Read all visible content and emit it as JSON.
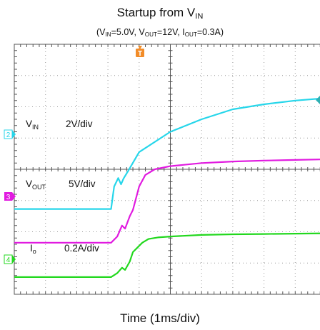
{
  "title": {
    "main": "Startup from V",
    "main_sub": "IN"
  },
  "subtitle": {
    "p1": "(V",
    "s1": "IN",
    "p2": "=5.0V, V",
    "s2": "OUT",
    "p3": "=12V, I",
    "s3": "OUT",
    "p4": "=0.3A)"
  },
  "xlabel": "Time (1ms/div)",
  "trigger": {
    "marker": "T",
    "color": "#f28c28"
  },
  "channels": [
    {
      "num": "2",
      "name": "V",
      "name_sub": "IN",
      "scale": "2V/div",
      "color": "#27d6ea"
    },
    {
      "num": "3",
      "name": "V",
      "name_sub": "OUT",
      "scale": "5V/div",
      "color": "#e11be0"
    },
    {
      "num": "4",
      "name": "I",
      "name_sub": "o",
      "scale": "0.2A/div",
      "color": "#22d81e"
    }
  ],
  "chart_data": {
    "type": "line",
    "title": "Startup from VIN",
    "subtitle": "(VIN=5.0V, VOUT=12V, IOUT=0.3A)",
    "xlabel": "Time (1ms/div)",
    "ylabel": "",
    "grid": true,
    "x_unit": "div",
    "y_unit": "div",
    "xlim": [
      0,
      10
    ],
    "ylim": [
      0,
      8
    ],
    "series": [
      {
        "name": "VIN (2V/div)",
        "color": "#27d6ea",
        "x": [
          0,
          3.1,
          3.2,
          3.33,
          3.42,
          3.5,
          3.65,
          4,
          5,
          6,
          7,
          8,
          9,
          10
        ],
        "y": [
          2.73,
          2.73,
          3.45,
          3.72,
          3.52,
          3.7,
          3.95,
          4.55,
          5.2,
          5.6,
          5.92,
          6.08,
          6.2,
          6.28
        ]
      },
      {
        "name": "VOUT (5V/div)",
        "color": "#e11be0",
        "x": [
          0,
          3.1,
          3.3,
          3.45,
          3.55,
          3.7,
          3.8,
          4,
          4.2,
          4.5,
          5,
          6,
          7,
          8,
          9,
          10
        ],
        "y": [
          1.65,
          1.65,
          1.85,
          2.2,
          2.1,
          2.5,
          2.7,
          3.45,
          3.82,
          4.0,
          4.1,
          4.2,
          4.25,
          4.28,
          4.3,
          4.32
        ]
      },
      {
        "name": "Io (0.2A/div)",
        "color": "#22d81e",
        "x": [
          0,
          3.1,
          3.3,
          3.45,
          3.55,
          3.7,
          3.8,
          4.1,
          4.3,
          4.6,
          5,
          6,
          7,
          8,
          9,
          10
        ],
        "y": [
          0.55,
          0.55,
          0.68,
          0.85,
          0.78,
          1.05,
          1.35,
          1.65,
          1.77,
          1.82,
          1.85,
          1.9,
          1.92,
          1.93,
          1.94,
          1.95
        ]
      }
    ]
  }
}
